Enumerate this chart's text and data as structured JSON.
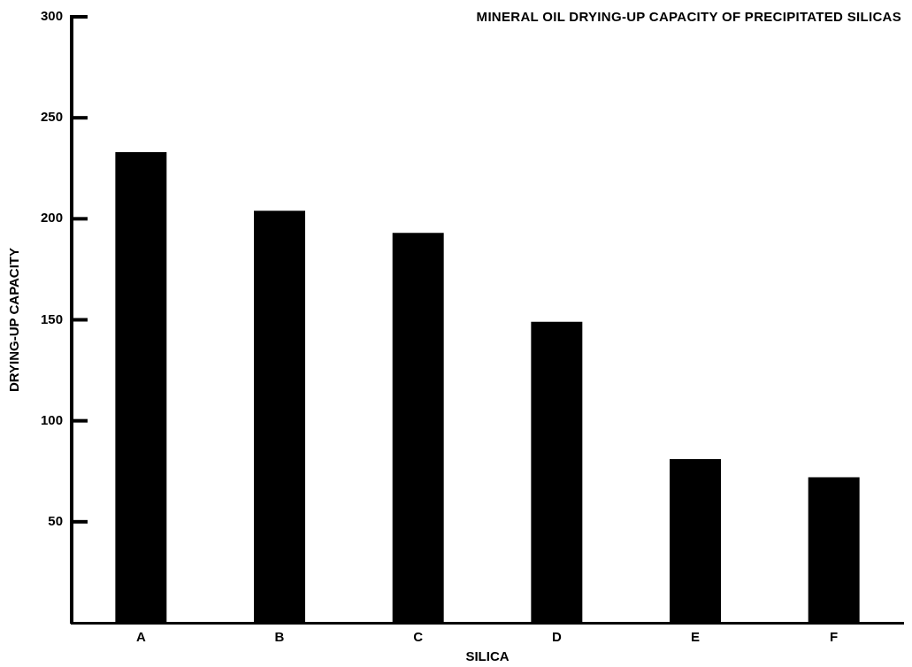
{
  "chart_data": {
    "type": "bar",
    "title": "MINERAL OIL DRYING-UP CAPACITY OF PRECIPITATED SILICAS",
    "xlabel": "SILICA",
    "ylabel": "DRYING-UP CAPACITY",
    "categories": [
      "A",
      "B",
      "C",
      "D",
      "E",
      "F"
    ],
    "values": [
      233,
      204,
      193,
      149,
      81,
      72
    ],
    "color": "#000000",
    "ylim": [
      0,
      300
    ],
    "yticks": [
      50,
      100,
      150,
      200,
      250,
      300
    ],
    "grid": false,
    "legend": false
  }
}
